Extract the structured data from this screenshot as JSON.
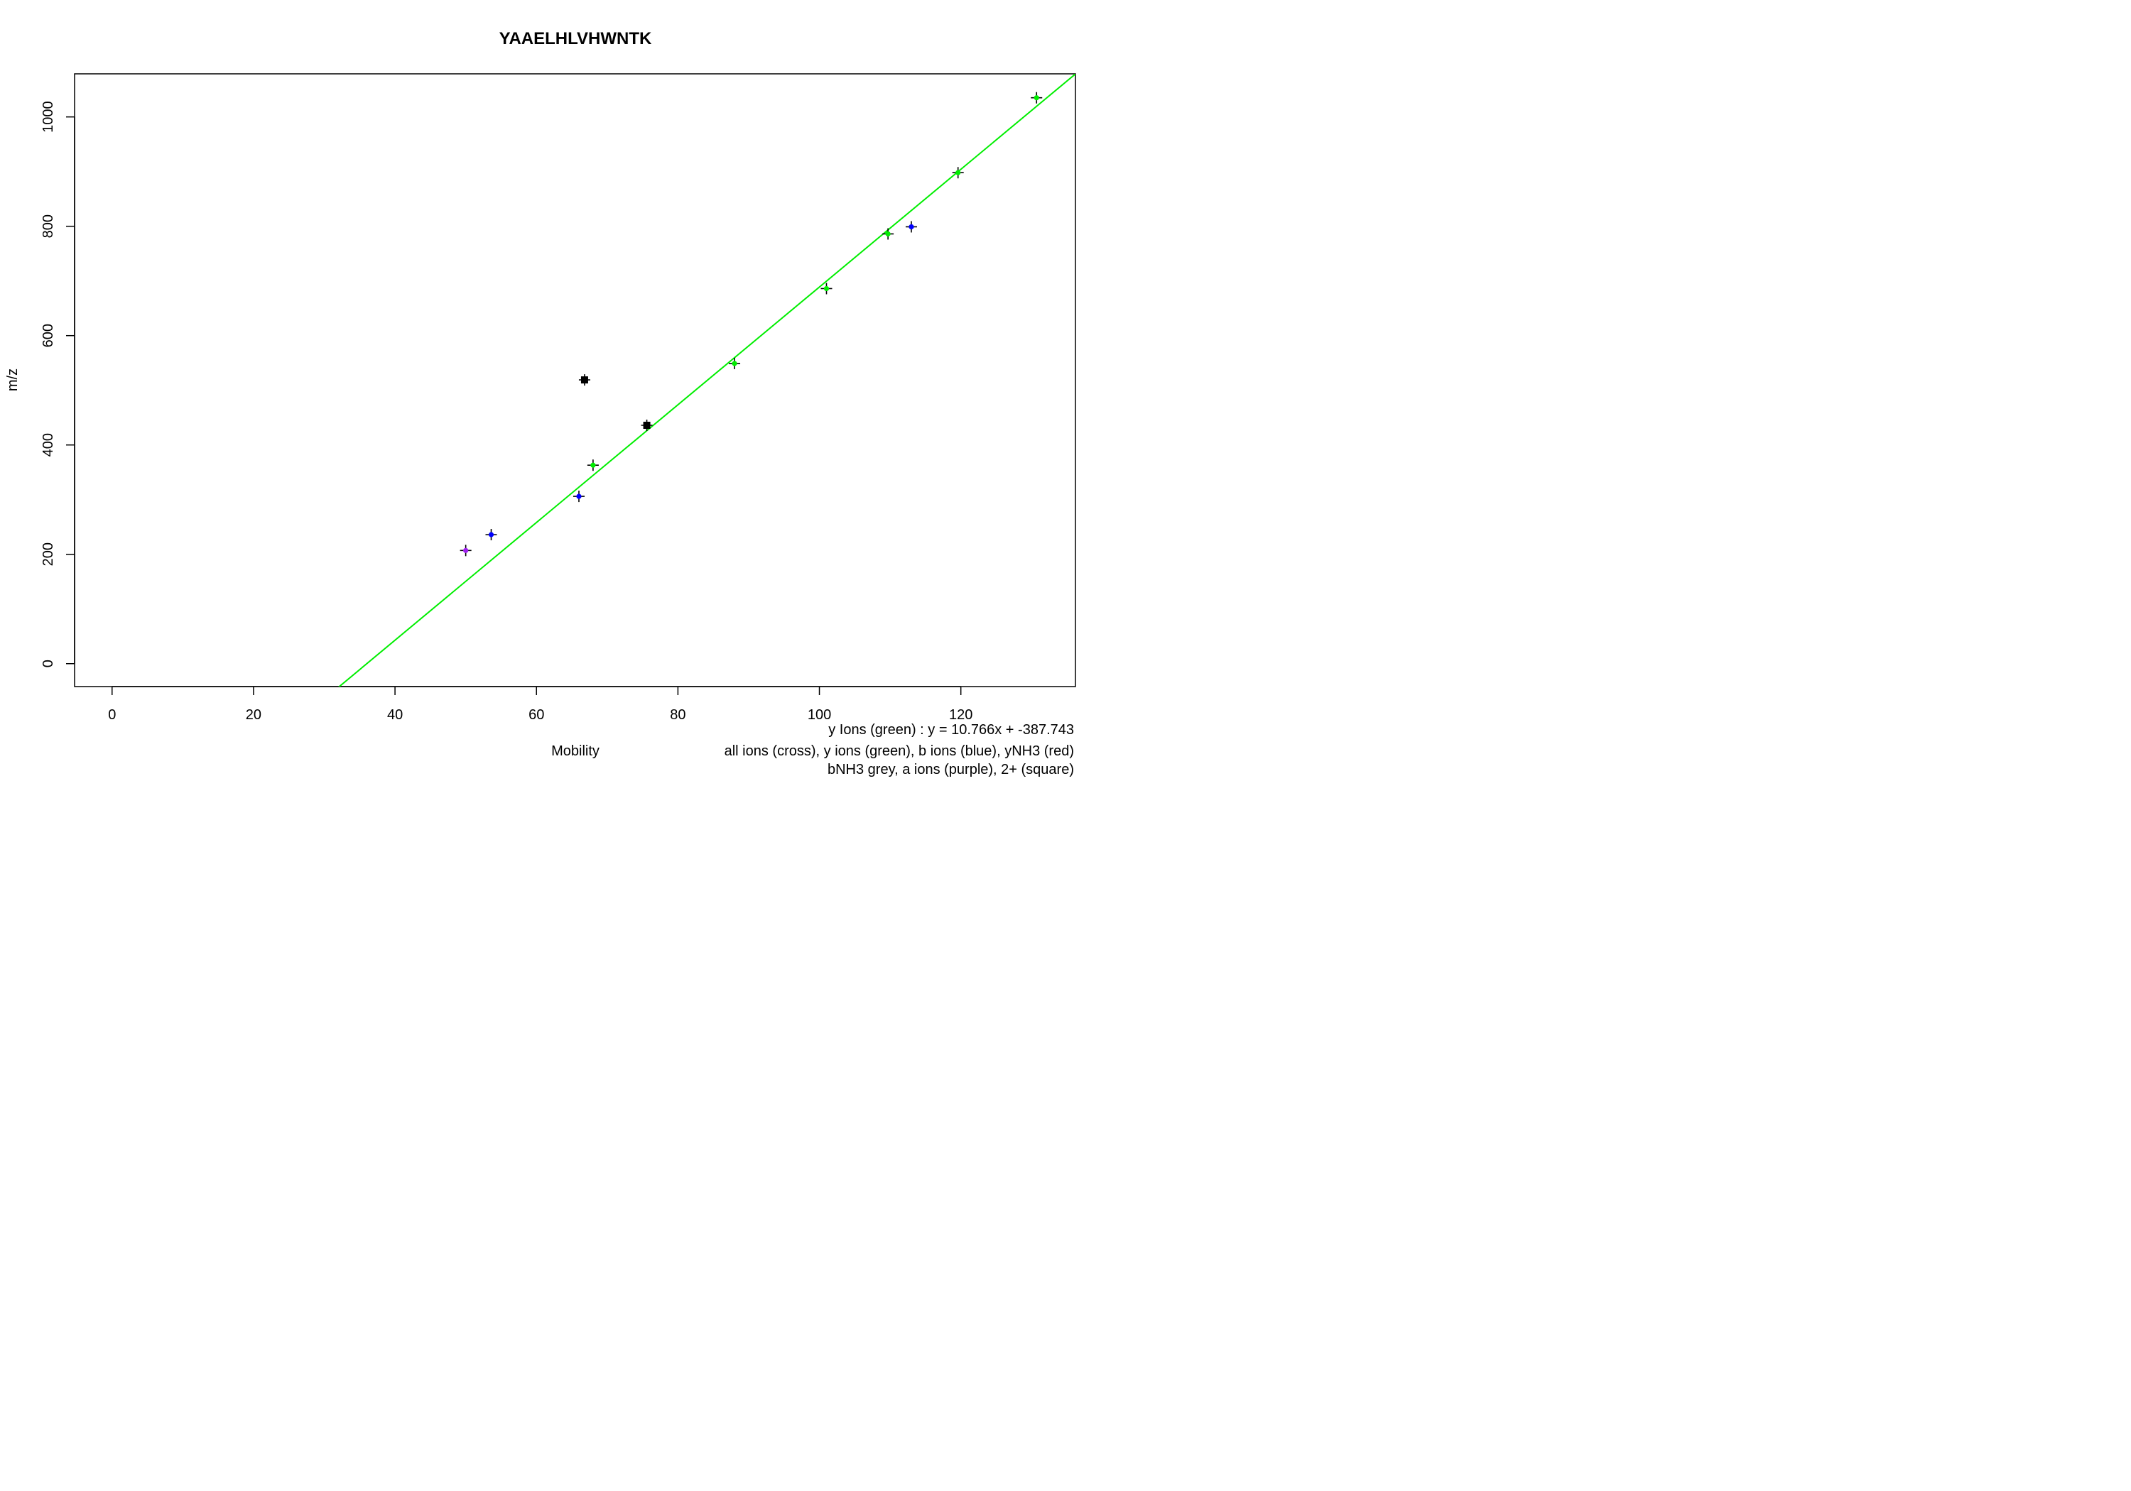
{
  "chart_data": {
    "type": "scatter",
    "title": "YAAELHLVHWNTK",
    "xlabel": "Mobility",
    "ylabel": "m/z",
    "xlim": [
      -5.3,
      136.2
    ],
    "ylim": [
      -41.9,
      1078.8
    ],
    "x_ticks": [
      0,
      20,
      40,
      60,
      80,
      100,
      120
    ],
    "y_ticks": [
      0,
      200,
      400,
      600,
      800,
      1000
    ],
    "grid": false,
    "legend": [
      "y Ions (green) : y = 10.766x + -387.743",
      "all ions (cross), y ions (green), b ions (blue), yNH3 (red)",
      "bNH3 grey, a ions (purple), 2+ (square)"
    ],
    "legend_placement": "bottom-right",
    "colors": {
      "y_ions": "#00ee00",
      "b_ions": "#0000ff",
      "a_ions": "#a020f0",
      "all_ions": "#000000",
      "fit_line": "#00ee00"
    },
    "fit": {
      "slope": 10.766,
      "intercept": -387.743
    },
    "series": [
      {
        "name": "all ions",
        "points": [
          [
            50,
            207
          ],
          [
            53.6,
            236
          ],
          [
            66,
            306
          ],
          [
            66.8,
            519
          ],
          [
            68,
            363
          ],
          [
            75.6,
            436
          ],
          [
            88,
            549
          ],
          [
            101,
            686
          ],
          [
            109.7,
            786
          ],
          [
            113,
            799
          ],
          [
            119.6,
            898
          ],
          [
            130.7,
            1035
          ]
        ]
      },
      {
        "name": "y ions",
        "points": [
          [
            68,
            363
          ],
          [
            88,
            549
          ],
          [
            101,
            686
          ],
          [
            109.7,
            786
          ],
          [
            119.6,
            898
          ],
          [
            130.7,
            1035
          ]
        ]
      },
      {
        "name": "b ions",
        "points": [
          [
            53.6,
            236
          ],
          [
            66,
            306
          ],
          [
            113,
            799
          ]
        ]
      },
      {
        "name": "a ions",
        "points": [
          [
            50,
            207
          ]
        ]
      },
      {
        "name": "2+",
        "points": [
          [
            66.8,
            519
          ],
          [
            75.6,
            436
          ]
        ]
      }
    ]
  }
}
